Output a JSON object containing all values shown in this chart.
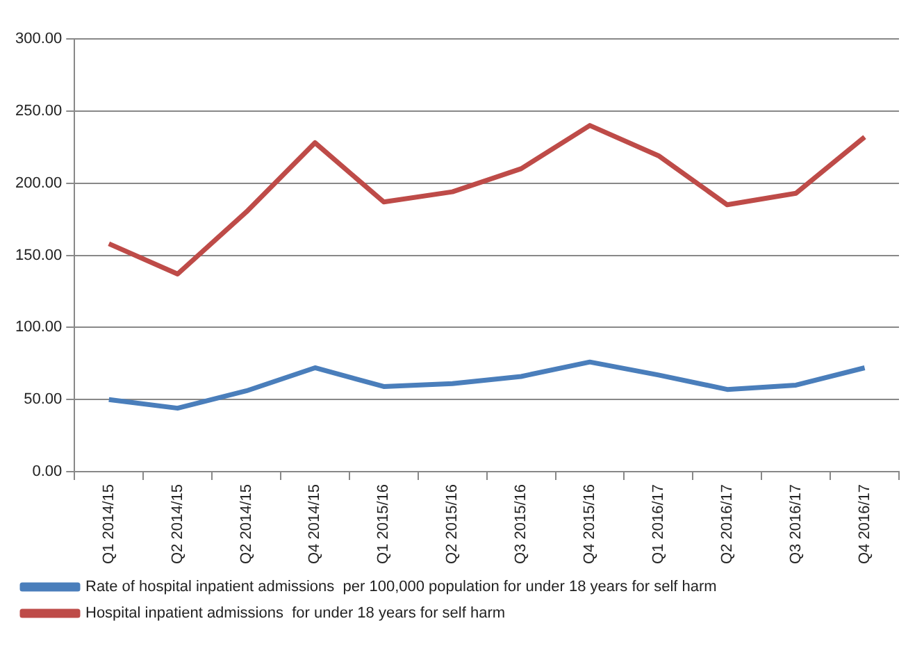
{
  "chart_data": {
    "type": "line",
    "categories": [
      "Q1 2014/15",
      "Q2 2014/15",
      "Q2 2014/15",
      "Q4 2014/15",
      "Q1 2015/16",
      "Q2 2015/16",
      "Q3 2015/16",
      "Q4 2015/16",
      "Q1 2016/17",
      "Q2 2016/17",
      "Q3 2016/17",
      "Q4 2016/17"
    ],
    "series": [
      {
        "name": "Rate of hospital inpatient admissions  per 100,000 population for under 18 years for self harm",
        "color": "#4a7ebb",
        "values": [
          50,
          44,
          56,
          72,
          59,
          61,
          66,
          76,
          67,
          57,
          60,
          72
        ]
      },
      {
        "name": "Hospital inpatient admissions  for under 18 years for self harm",
        "color": "#be4b48",
        "values": [
          158,
          137,
          180,
          228,
          187,
          194,
          210,
          240,
          219,
          185,
          193,
          232
        ]
      }
    ],
    "ylim": [
      0,
      300
    ],
    "yticks": [
      {
        "value": 0,
        "label": "0.00"
      },
      {
        "value": 50,
        "label": "50.00"
      },
      {
        "value": 100,
        "label": "100.00"
      },
      {
        "value": 150,
        "label": "150.00"
      },
      {
        "value": 200,
        "label": "200.00"
      },
      {
        "value": 250,
        "label": "250.00"
      },
      {
        "value": 300,
        "label": "300.00"
      }
    ],
    "grid": "y",
    "legend": "bottom",
    "marker": "none",
    "line_style": "solid"
  }
}
